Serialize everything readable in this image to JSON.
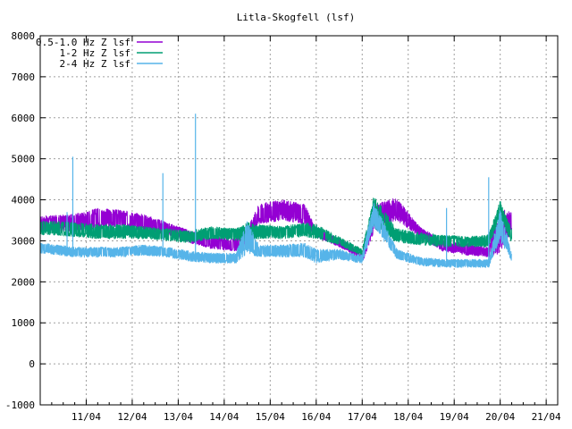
{
  "chart_data": {
    "type": "line",
    "title": "Litla-Skogfell (lsf)",
    "xlabel": "",
    "ylabel": "",
    "ylim": [
      -1000,
      8000
    ],
    "yticks": [
      -1000,
      0,
      1000,
      2000,
      3000,
      4000,
      5000,
      6000,
      7000,
      8000
    ],
    "xlim": [
      "10/04 00:00",
      "21/04 06:00"
    ],
    "xtick_labels": [
      "11/04",
      "12/04",
      "13/04",
      "14/04",
      "15/04",
      "16/04",
      "17/04",
      "18/04",
      "19/04",
      "20/04",
      "21/04"
    ],
    "grid": true,
    "legend_position": "top-left",
    "series": [
      {
        "name": "0.5-1.0 Hz Z lsf",
        "color": "#9400d3",
        "x": [
          "10/04 00:00",
          "10/04 18:00",
          "11/04 06:00",
          "11/04 18:00",
          "12/04 06:00",
          "12/04 18:00",
          "13/04 06:00",
          "13/04 18:00",
          "14/04 06:00",
          "14/04 12:00",
          "14/04 18:00",
          "15/04 06:00",
          "15/04 18:00",
          "16/04 00:00",
          "16/04 12:00",
          "16/04 18:00",
          "17/04 00:00",
          "17/04 06:00",
          "17/04 18:00",
          "18/04 06:00",
          "18/04 18:00",
          "19/04 06:00",
          "19/04 18:00",
          "20/04 00:00",
          "20/04 06:00"
        ],
        "low": [
          3200,
          3250,
          3300,
          3350,
          3250,
          3150,
          2950,
          2800,
          2750,
          2900,
          3400,
          3500,
          3400,
          3100,
          2850,
          2700,
          2450,
          3200,
          3500,
          3100,
          2750,
          2650,
          2600,
          2700,
          3250
        ],
        "high": [
          3600,
          3650,
          3800,
          3750,
          3650,
          3450,
          3250,
          3100,
          3050,
          3300,
          3900,
          4000,
          3900,
          3300,
          3050,
          2900,
          2650,
          3900,
          4050,
          3350,
          3000,
          2950,
          2850,
          3800,
          3700
        ]
      },
      {
        "name": "1-2 Hz Z lsf",
        "color": "#009e73",
        "x": [
          "10/04 00:00",
          "10/04 18:00",
          "11/04 06:00",
          "11/04 18:00",
          "12/04 06:00",
          "12/04 18:00",
          "13/04 06:00",
          "13/04 18:00",
          "14/04 06:00",
          "14/04 12:00",
          "14/04 18:00",
          "15/04 06:00",
          "15/04 18:00",
          "16/04 00:00",
          "16/04 12:00",
          "16/04 18:00",
          "17/04 00:00",
          "17/04 06:00",
          "17/04 18:00",
          "18/04 06:00",
          "18/04 18:00",
          "19/04 06:00",
          "19/04 18:00",
          "20/04 00:00",
          "20/04 06:00"
        ],
        "low": [
          3150,
          3100,
          3050,
          3050,
          3050,
          3000,
          2950,
          3050,
          3000,
          2950,
          3050,
          3050,
          3100,
          3050,
          2900,
          2750,
          2650,
          3300,
          2950,
          2900,
          2850,
          2850,
          2850,
          3550,
          2950
        ],
        "high": [
          3500,
          3450,
          3400,
          3400,
          3350,
          3300,
          3250,
          3350,
          3300,
          3450,
          3400,
          3350,
          3450,
          3400,
          3100,
          2950,
          2800,
          4100,
          3300,
          3200,
          3150,
          3100,
          3150,
          4000,
          3300
        ]
      },
      {
        "name": "2-4 Hz Z lsf",
        "color": "#56b4e9",
        "x": [
          "10/04 00:00",
          "10/04 18:00",
          "11/04 06:00",
          "11/04 18:00",
          "12/04 06:00",
          "12/04 18:00",
          "13/04 06:00",
          "13/04 18:00",
          "14/04 06:00",
          "14/04 12:00",
          "14/04 18:00",
          "15/04 06:00",
          "15/04 18:00",
          "16/04 00:00",
          "16/04 12:00",
          "16/04 18:00",
          "17/04 00:00",
          "17/04 06:00",
          "17/04 18:00",
          "18/04 06:00",
          "18/04 18:00",
          "19/04 06:00",
          "19/04 18:00",
          "20/04 00:00",
          "20/04 06:00"
        ],
        "low": [
          2700,
          2600,
          2600,
          2600,
          2650,
          2600,
          2500,
          2450,
          2450,
          2700,
          2600,
          2600,
          2600,
          2450,
          2550,
          2500,
          2450,
          3350,
          2550,
          2400,
          2350,
          2350,
          2350,
          3000,
          2500
        ],
        "high": [
          2950,
          2850,
          2850,
          2850,
          2900,
          2850,
          2750,
          2700,
          2700,
          3500,
          2900,
          2900,
          2950,
          2800,
          2800,
          2700,
          2650,
          3950,
          2800,
          2600,
          2550,
          2550,
          2550,
          3800,
          2700
        ]
      }
    ],
    "spikes": [
      {
        "series": 2,
        "x": "10/04 17:00",
        "y": 5050
      },
      {
        "series": 2,
        "x": "10/04 14:00",
        "y": 3700
      },
      {
        "series": 2,
        "x": "12/04 16:00",
        "y": 4650
      },
      {
        "series": 2,
        "x": "13/04 09:00",
        "y": 6100
      },
      {
        "series": 2,
        "x": "18/04 20:00",
        "y": 3800
      },
      {
        "series": 2,
        "x": "19/04 18:00",
        "y": 4550
      }
    ]
  }
}
